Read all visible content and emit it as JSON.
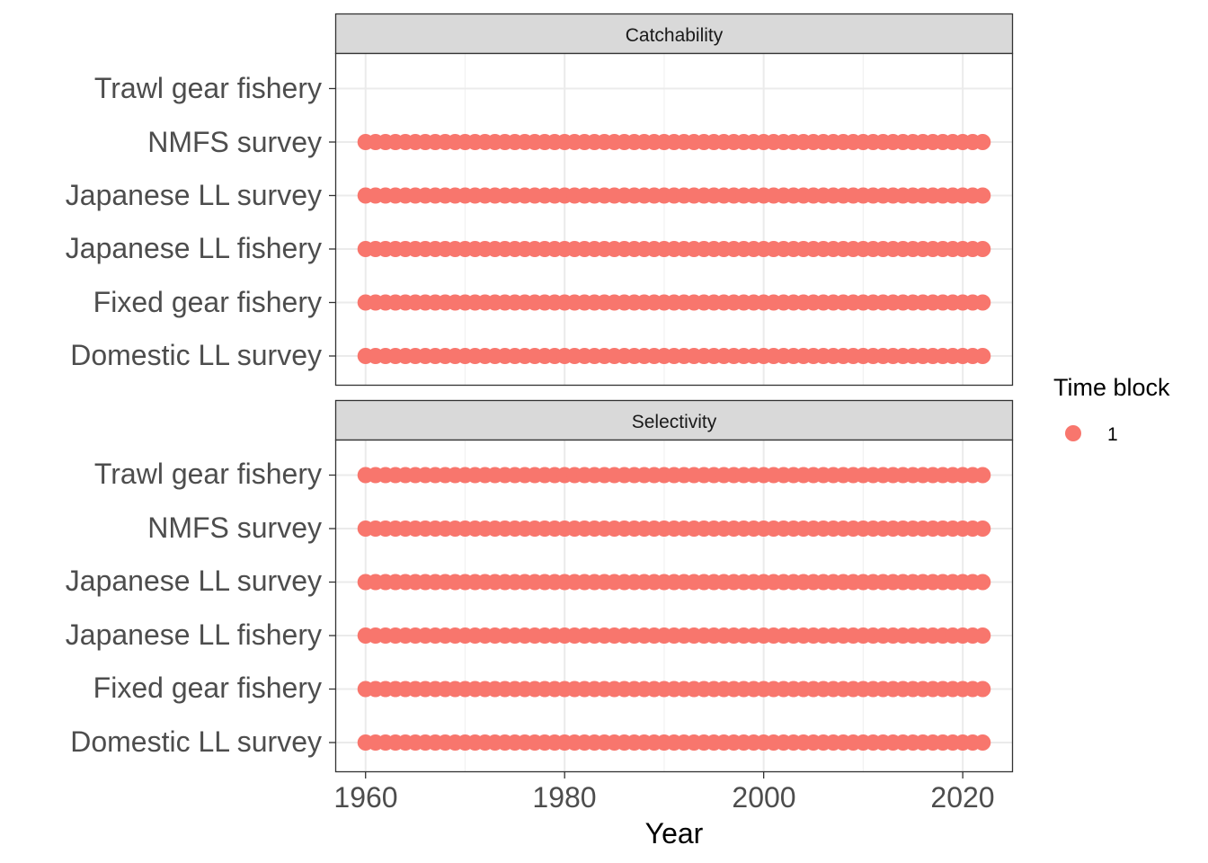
{
  "chart_data": {
    "type": "scatter",
    "xlabel": "Year",
    "xlim": [
      1957.0,
      2025.0
    ],
    "x_ticks": [
      "1960",
      "1980",
      "2000",
      "2020"
    ],
    "x_tick_values": [
      1960,
      1980,
      2000,
      2020
    ],
    "years": [
      1960,
      2022
    ],
    "categories": [
      "Trawl gear fishery",
      "NMFS survey",
      "Japanese LL survey",
      "Japanese LL fishery",
      "Fixed gear fishery",
      "Domestic LL survey"
    ],
    "point_color": "#F8766D",
    "grid": true,
    "legend": {
      "title": "Time block",
      "entries": [
        "1"
      ],
      "placement": "right"
    },
    "panels": [
      {
        "name": "Catchability",
        "series": [
          {
            "category": "Trawl gear fishery",
            "years": []
          },
          {
            "category": "NMFS survey",
            "years": [
              1960,
              2022
            ]
          },
          {
            "category": "Japanese LL survey",
            "years": [
              1960,
              2022
            ]
          },
          {
            "category": "Japanese LL fishery",
            "years": [
              1960,
              2022
            ]
          },
          {
            "category": "Fixed gear fishery",
            "years": [
              1960,
              2022
            ]
          },
          {
            "category": "Domestic LL survey",
            "years": [
              1960,
              2022
            ]
          }
        ]
      },
      {
        "name": "Selectivity",
        "series": [
          {
            "category": "Trawl gear fishery",
            "years": [
              1960,
              2022
            ]
          },
          {
            "category": "NMFS survey",
            "years": [
              1960,
              2022
            ]
          },
          {
            "category": "Japanese LL survey",
            "years": [
              1960,
              2022
            ]
          },
          {
            "category": "Japanese LL fishery",
            "years": [
              1960,
              2022
            ]
          },
          {
            "category": "Fixed gear fishery",
            "years": [
              1960,
              2022
            ]
          },
          {
            "category": "Domestic LL survey",
            "years": [
              1960,
              2022
            ]
          }
        ]
      }
    ]
  }
}
